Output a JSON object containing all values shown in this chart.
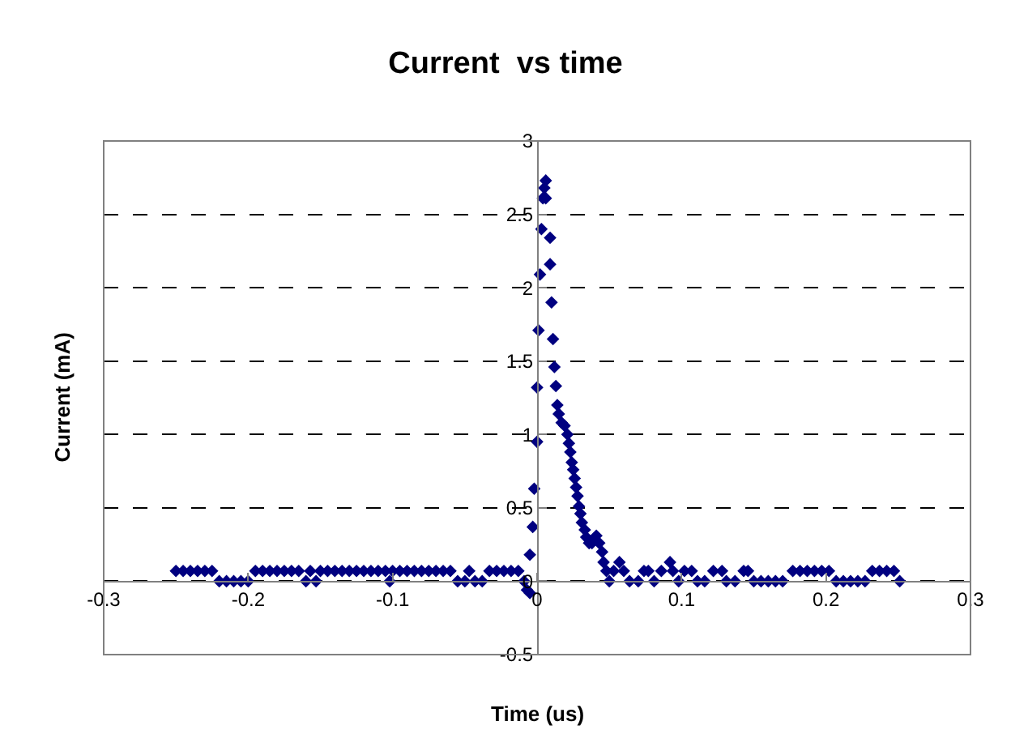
{
  "chart_data": {
    "type": "scatter",
    "title": "Current  vs time",
    "xlabel": "Time (us)",
    "ylabel": "Current (mA)",
    "x": [
      -0.25,
      -0.245,
      -0.24,
      -0.235,
      -0.23,
      -0.225,
      -0.22,
      -0.215,
      -0.21,
      -0.205,
      -0.2,
      -0.195,
      -0.19,
      -0.185,
      -0.18,
      -0.175,
      -0.17,
      -0.165,
      -0.16,
      -0.157,
      -0.153,
      -0.15,
      -0.145,
      -0.14,
      -0.135,
      -0.13,
      -0.125,
      -0.12,
      -0.115,
      -0.11,
      -0.105,
      -0.102,
      -0.1,
      -0.095,
      -0.09,
      -0.085,
      -0.08,
      -0.075,
      -0.07,
      -0.065,
      -0.06,
      -0.055,
      -0.05,
      -0.047,
      -0.043,
      -0.038,
      -0.033,
      -0.028,
      -0.023,
      -0.018,
      -0.013,
      -0.009,
      -0.007,
      -0.005,
      -0.005,
      -0.003,
      -0.002,
      0,
      0,
      0.001,
      0.002,
      0.003,
      0.004,
      0.005,
      0.006,
      0.006,
      0.009,
      0.009,
      0.01,
      0.011,
      0.012,
      0.013,
      0.014,
      0.015,
      0.017,
      0.019,
      0.021,
      0.022,
      0.023,
      0.024,
      0.025,
      0.026,
      0.027,
      0.028,
      0.029,
      0.03,
      0.031,
      0.033,
      0.034,
      0.036,
      0.038,
      0.041,
      0.043,
      0.045,
      0.046,
      0.048,
      0.05,
      0.053,
      0.057,
      0.06,
      0.064,
      0.07,
      0.074,
      0.077,
      0.081,
      0.086,
      0.092,
      0.094,
      0.098,
      0.102,
      0.107,
      0.111,
      0.116,
      0.122,
      0.128,
      0.131,
      0.137,
      0.143,
      0.146,
      0.15,
      0.155,
      0.16,
      0.165,
      0.17,
      0.177,
      0.182,
      0.187,
      0.192,
      0.197,
      0.202,
      0.207,
      0.212,
      0.217,
      0.222,
      0.227,
      0.232,
      0.237,
      0.242,
      0.247,
      0.251
    ],
    "series": [
      {
        "color": "#000080",
        "values": [
          0.07,
          0.07,
          0.07,
          0.07,
          0.07,
          0.07,
          0,
          0,
          0,
          0,
          0,
          0.07,
          0.07,
          0.07,
          0.07,
          0.07,
          0.07,
          0.07,
          0,
          0.07,
          0,
          0.07,
          0.07,
          0.07,
          0.07,
          0.07,
          0.07,
          0.07,
          0.07,
          0.07,
          0.07,
          0,
          0.07,
          0.07,
          0.07,
          0.07,
          0.07,
          0.07,
          0.07,
          0.07,
          0.07,
          0,
          0,
          0.07,
          0,
          0,
          0.07,
          0.07,
          0.07,
          0.07,
          0.07,
          0,
          -0.06,
          -0.08,
          0.18,
          0.37,
          0.63,
          0.95,
          1.32,
          1.71,
          2.09,
          2.4,
          2.61,
          2.68,
          2.73,
          2.61,
          2.34,
          2.16,
          1.9,
          1.65,
          1.46,
          1.33,
          1.2,
          1.14,
          1.08,
          1.06,
          1,
          0.94,
          0.88,
          0.81,
          0.76,
          0.7,
          0.64,
          0.58,
          0.51,
          0.46,
          0.4,
          0.35,
          0.3,
          0.26,
          0.26,
          0.31,
          0.26,
          0.2,
          0.13,
          0.07,
          0,
          0.07,
          0.13,
          0.07,
          0,
          0,
          0.07,
          0.07,
          0,
          0.07,
          0.13,
          0.07,
          0,
          0.07,
          0.07,
          0,
          0,
          0.07,
          0.07,
          0,
          0,
          0.07,
          0.07,
          0,
          0,
          0,
          0,
          0,
          0.07,
          0.07,
          0.07,
          0.07,
          0.07,
          0.07,
          0,
          0,
          0,
          0,
          0,
          0.07,
          0.07,
          0.07,
          0.07,
          0
        ]
      }
    ],
    "xlim": [
      -0.3,
      0.3
    ],
    "xticks": [
      -0.3,
      -0.2,
      -0.1,
      0,
      0.1,
      0.2,
      0.3
    ],
    "ylim": [
      -0.5,
      3
    ],
    "yticks": [
      -0.5,
      0,
      0.5,
      1,
      1.5,
      2,
      2.5,
      3
    ],
    "grid": "y",
    "legend": false,
    "marker": "diamond"
  }
}
